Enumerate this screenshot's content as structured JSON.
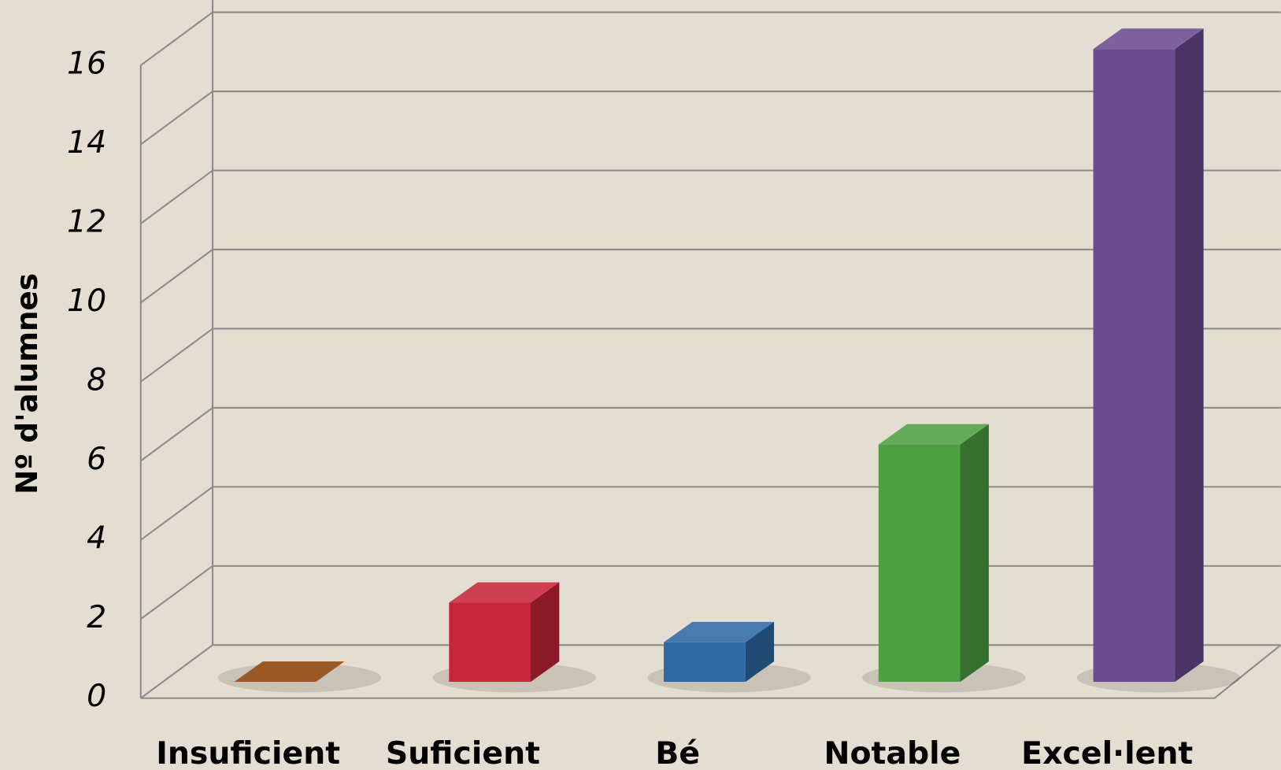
{
  "chart_data": {
    "type": "bar3d",
    "y_label": "Nº d'alumnes",
    "categories": [
      "Insuficient",
      "Suficient",
      "Bé",
      "Notable",
      "Excel·lent"
    ],
    "values": [
      0,
      2,
      1,
      6,
      16
    ],
    "colors": [
      "#8b4208",
      "#c8253a",
      "#2f6aa6",
      "#4fa043",
      "#6b4b91"
    ],
    "ylim": [
      0,
      16
    ],
    "yticks": [
      0,
      2,
      4,
      6,
      8,
      10,
      12,
      14,
      16
    ],
    "grid": true
  }
}
